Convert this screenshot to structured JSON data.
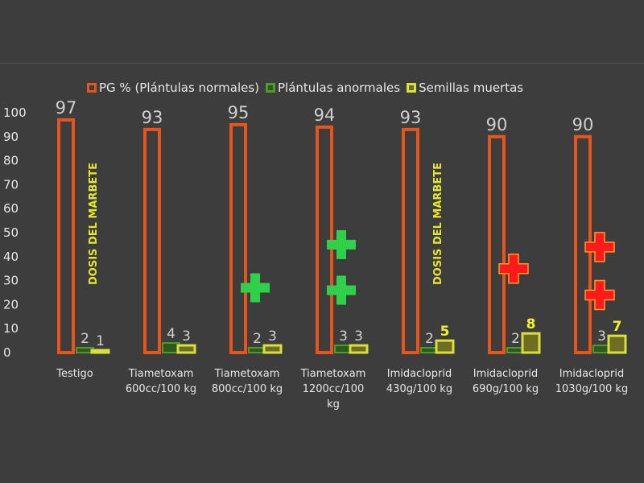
{
  "chart_data": {
    "type": "bar",
    "categories": [
      [
        "Testigo"
      ],
      [
        "Tiametoxam",
        "600cc/100 kg"
      ],
      [
        "Tiametoxam",
        "800cc/100 kg"
      ],
      [
        "Tiametoxam",
        "1200cc/100",
        "kg"
      ],
      [
        "Imidacloprid",
        "430g/100 kg"
      ],
      [
        "Imidacloprid",
        "690g/100 kg"
      ],
      [
        "Imidacloprid",
        "1030g/100 kg"
      ]
    ],
    "series": [
      {
        "name": "PG % (Plántulas normales)",
        "values": [
          97,
          93,
          95,
          94,
          93,
          90,
          90
        ],
        "color": "#e8551a"
      },
      {
        "name": "Plántulas anormales",
        "values": [
          2,
          4,
          2,
          3,
          2,
          2,
          3
        ],
        "color": "#4f9a2c"
      },
      {
        "name": "Semillas muertas",
        "values": [
          1,
          3,
          3,
          3,
          5,
          8,
          7
        ],
        "color": "#d8e03a"
      }
    ],
    "value_label_colors": [
      [
        "#cfcfcf",
        "#cfcfcf",
        "#cfcfcf"
      ],
      [
        "#cfcfcf",
        "#cfcfcf",
        "#cfcfcf"
      ],
      [
        "#cfcfcf",
        "#cfcfcf",
        "#cfcfcf"
      ],
      [
        "#cfcfcf",
        "#cfcfcf",
        "#cfcfcf"
      ],
      [
        "#cfcfcf",
        "#cfcfcf",
        "#f2f22a"
      ],
      [
        "#cfcfcf",
        "#cfcfcf",
        "#f2f22a"
      ],
      [
        "#cfcfcf",
        "#cfcfcf",
        "#f2f22a"
      ]
    ],
    "ylim": [
      0,
      100
    ],
    "yticks": [
      0,
      10,
      20,
      30,
      40,
      50,
      60,
      70,
      80,
      90,
      100
    ],
    "grid": false,
    "legend_position": "top",
    "annotations": [
      {
        "text": "DOSIS DEL MARBETE",
        "category_index": 0,
        "orientation": "vertical",
        "color": "#e6e62a"
      },
      {
        "text": "DOSIS DEL MARBETE",
        "category_index": 4,
        "orientation": "vertical",
        "color": "#e6e62a"
      }
    ],
    "markers": [
      {
        "category_index": 2,
        "y": 27,
        "symbol": "plus",
        "color": "#2fd14a"
      },
      {
        "category_index": 3,
        "y": 45,
        "symbol": "plus",
        "color": "#2fd14a"
      },
      {
        "category_index": 3,
        "y": 26,
        "symbol": "plus",
        "color": "#2fd14a"
      },
      {
        "category_index": 5,
        "y": 35,
        "symbol": "plus",
        "color": "#ff1a1a"
      },
      {
        "category_index": 6,
        "y": 44,
        "symbol": "plus",
        "color": "#ff1a1a"
      },
      {
        "category_index": 6,
        "y": 24,
        "symbol": "plus",
        "color": "#ff1a1a"
      }
    ]
  }
}
